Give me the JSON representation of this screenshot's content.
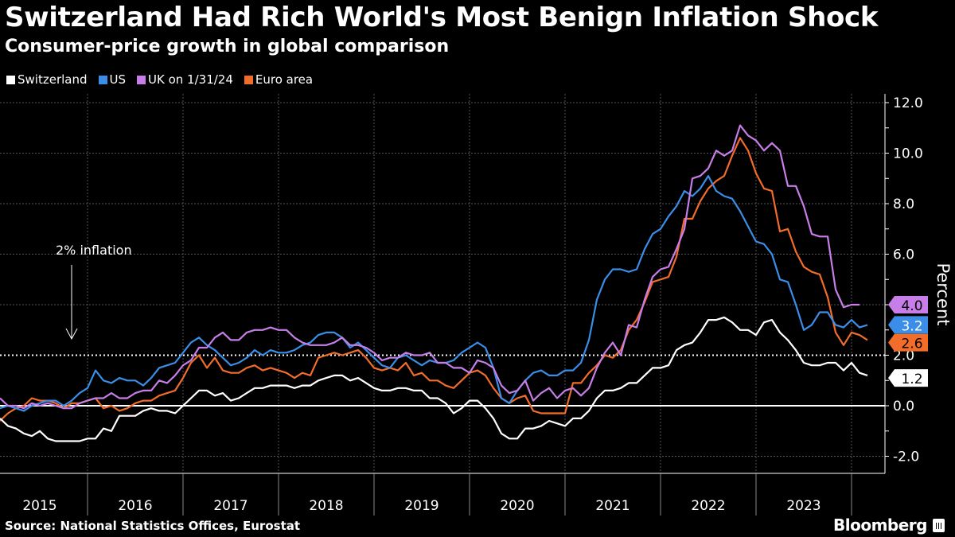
{
  "header": {
    "title": "Switzerland Had Rich World's Most Benign Inflation Shock",
    "subtitle": "Consumer-price growth in global comparison"
  },
  "footer": {
    "source": "Source: National Statistics Offices, Eurostat",
    "brand": "Bloomberg"
  },
  "colors": {
    "background": "#000000",
    "switzerland": "#ffffff",
    "us": "#3b8ee8",
    "uk": "#c77ee8",
    "euro": "#f26c2a",
    "grid": "#666666"
  },
  "chart_data": {
    "type": "line",
    "title": "Switzerland Had Rich World's Most Benign Inflation Shock",
    "subtitle": "Consumer-price growth in global comparison",
    "xlabel": "",
    "ylabel": "Percent",
    "x_start": "2015-01",
    "x_frequency": "monthly",
    "xticks": [
      "2015",
      "2016",
      "2017",
      "2018",
      "2019",
      "2020",
      "2021",
      "2022",
      "2023"
    ],
    "ylim": [
      -2.6,
      12.4
    ],
    "yticks": [
      "12.0",
      "10.0",
      "8.0",
      "6.0",
      "4.0",
      "2.0",
      "0.0",
      "-2.0"
    ],
    "grid": true,
    "legend_position": "top-left",
    "annotations": [
      {
        "text": "2% inflation",
        "type": "arrow-label",
        "target_value": 2.0
      },
      {
        "type": "reference-line",
        "value": 2.0,
        "style": "dotted"
      },
      {
        "type": "reference-line",
        "value": 0.0,
        "style": "solid"
      }
    ],
    "last_value_labels": [
      {
        "series": "UK on 1/31/24",
        "text": "4.0"
      },
      {
        "series": "US",
        "text": "3.2"
      },
      {
        "series": "Euro area",
        "text": "2.6"
      },
      {
        "series": "Switzerland",
        "text": "1.2"
      }
    ],
    "series": [
      {
        "name": "Switzerland",
        "color": "#ffffff",
        "values": [
          -0.5,
          -0.8,
          -0.9,
          -1.1,
          -1.2,
          -1.0,
          -1.3,
          -1.4,
          -1.4,
          -1.4,
          -1.4,
          -1.3,
          -1.3,
          -0.9,
          -1.0,
          -0.4,
          -0.4,
          -0.4,
          -0.2,
          -0.1,
          -0.2,
          -0.2,
          -0.3,
          0.0,
          0.3,
          0.6,
          0.6,
          0.4,
          0.5,
          0.2,
          0.3,
          0.5,
          0.7,
          0.7,
          0.8,
          0.8,
          0.8,
          0.7,
          0.8,
          0.8,
          1.0,
          1.1,
          1.2,
          1.2,
          1.0,
          1.1,
          0.9,
          0.7,
          0.6,
          0.6,
          0.7,
          0.7,
          0.6,
          0.6,
          0.3,
          0.3,
          0.1,
          -0.3,
          -0.1,
          0.2,
          0.2,
          -0.1,
          -0.5,
          -1.1,
          -1.3,
          -1.3,
          -0.9,
          -0.9,
          -0.8,
          -0.6,
          -0.7,
          -0.8,
          -0.5,
          -0.5,
          -0.2,
          0.3,
          0.6,
          0.6,
          0.7,
          0.9,
          0.9,
          1.2,
          1.5,
          1.5,
          1.6,
          2.2,
          2.4,
          2.5,
          2.9,
          3.4,
          3.4,
          3.5,
          3.3,
          3.0,
          3.0,
          2.8,
          3.3,
          3.4,
          2.9,
          2.6,
          2.2,
          1.7,
          1.6,
          1.6,
          1.7,
          1.7,
          1.4,
          1.7,
          1.3,
          1.2
        ]
      },
      {
        "name": "US",
        "color": "#3b8ee8",
        "values": [
          -0.1,
          0.0,
          -0.1,
          -0.2,
          0.0,
          0.1,
          0.2,
          0.2,
          0.0,
          0.2,
          0.5,
          0.7,
          1.4,
          1.0,
          0.9,
          1.1,
          1.0,
          1.0,
          0.8,
          1.1,
          1.5,
          1.6,
          1.7,
          2.1,
          2.5,
          2.7,
          2.4,
          2.2,
          1.9,
          1.6,
          1.7,
          1.9,
          2.2,
          2.0,
          2.2,
          2.1,
          2.1,
          2.2,
          2.4,
          2.5,
          2.8,
          2.9,
          2.9,
          2.7,
          2.3,
          2.5,
          2.2,
          1.9,
          1.6,
          1.5,
          1.9,
          2.0,
          1.8,
          1.6,
          1.8,
          1.7,
          1.7,
          1.8,
          2.1,
          2.3,
          2.5,
          2.3,
          1.5,
          0.3,
          0.1,
          0.6,
          1.0,
          1.3,
          1.4,
          1.2,
          1.2,
          1.4,
          1.4,
          1.7,
          2.6,
          4.2,
          5.0,
          5.4,
          5.4,
          5.3,
          5.4,
          6.2,
          6.8,
          7.0,
          7.5,
          7.9,
          8.5,
          8.3,
          8.6,
          9.1,
          8.5,
          8.3,
          8.2,
          7.7,
          7.1,
          6.5,
          6.4,
          6.0,
          5.0,
          4.9,
          4.0,
          3.0,
          3.2,
          3.7,
          3.7,
          3.2,
          3.1,
          3.4,
          3.1,
          3.2
        ]
      },
      {
        "name": "UK on 1/31/24",
        "color": "#c77ee8",
        "values": [
          0.3,
          0.0,
          0.0,
          -0.1,
          0.1,
          0.0,
          0.1,
          0.0,
          -0.1,
          -0.1,
          0.1,
          0.2,
          0.3,
          0.3,
          0.5,
          0.3,
          0.3,
          0.5,
          0.6,
          0.6,
          1.0,
          0.9,
          1.2,
          1.6,
          1.8,
          2.3,
          2.3,
          2.7,
          2.9,
          2.6,
          2.6,
          2.9,
          3.0,
          3.0,
          3.1,
          3.0,
          3.0,
          2.7,
          2.5,
          2.4,
          2.4,
          2.4,
          2.5,
          2.7,
          2.4,
          2.4,
          2.3,
          2.1,
          1.8,
          1.9,
          1.9,
          2.1,
          2.0,
          2.0,
          2.1,
          1.7,
          1.7,
          1.5,
          1.5,
          1.3,
          1.8,
          1.7,
          1.5,
          0.8,
          0.5,
          0.6,
          1.0,
          0.2,
          0.5,
          0.7,
          0.3,
          0.6,
          0.7,
          0.4,
          0.7,
          1.5,
          2.1,
          2.5,
          2.0,
          3.2,
          3.1,
          4.2,
          5.1,
          5.4,
          5.5,
          6.2,
          7.0,
          9.0,
          9.1,
          9.4,
          10.1,
          9.9,
          10.1,
          11.1,
          10.7,
          10.5,
          10.1,
          10.4,
          10.1,
          8.7,
          8.7,
          7.9,
          6.8,
          6.7,
          6.7,
          4.6,
          3.9,
          4.0,
          4.0
        ]
      },
      {
        "name": "Euro area",
        "color": "#f26c2a",
        "values": [
          -0.6,
          -0.3,
          -0.1,
          0.0,
          0.3,
          0.2,
          0.2,
          0.1,
          -0.1,
          0.1,
          0.1,
          0.2,
          0.3,
          -0.1,
          0.0,
          -0.2,
          -0.1,
          0.1,
          0.2,
          0.2,
          0.4,
          0.5,
          0.6,
          1.1,
          1.7,
          2.0,
          1.5,
          1.9,
          1.4,
          1.3,
          1.3,
          1.5,
          1.6,
          1.4,
          1.5,
          1.4,
          1.3,
          1.1,
          1.3,
          1.2,
          1.9,
          2.0,
          2.1,
          2.0,
          2.1,
          2.2,
          1.9,
          1.5,
          1.4,
          1.5,
          1.4,
          1.7,
          1.2,
          1.3,
          1.0,
          1.0,
          0.8,
          0.7,
          1.0,
          1.3,
          1.4,
          1.2,
          0.7,
          0.3,
          0.1,
          0.3,
          0.4,
          -0.2,
          -0.3,
          -0.3,
          -0.3,
          -0.3,
          0.9,
          0.9,
          1.3,
          1.6,
          2.0,
          1.9,
          2.2,
          3.0,
          3.4,
          4.1,
          4.9,
          5.0,
          5.1,
          5.9,
          7.4,
          7.4,
          8.1,
          8.6,
          8.9,
          9.1,
          9.9,
          10.6,
          10.1,
          9.2,
          8.6,
          8.5,
          6.9,
          7.0,
          6.1,
          5.5,
          5.3,
          5.2,
          4.3,
          2.9,
          2.4,
          2.9,
          2.8,
          2.6
        ]
      }
    ]
  }
}
